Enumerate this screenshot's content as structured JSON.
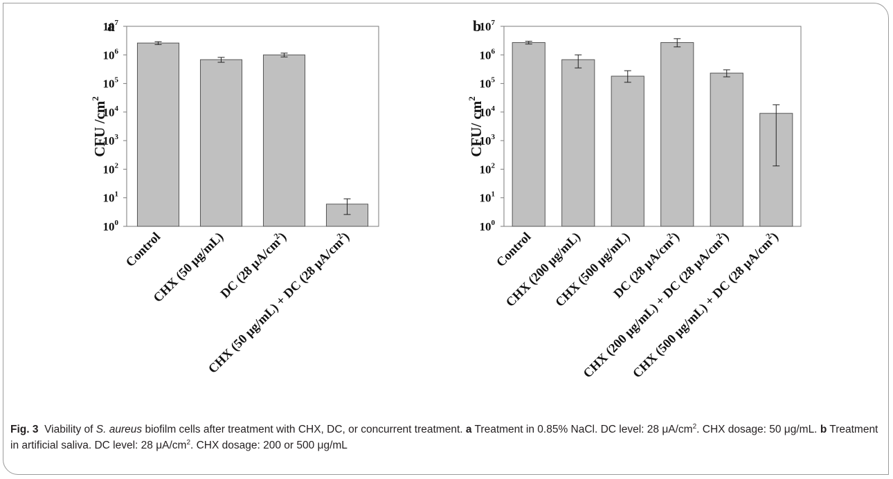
{
  "chart_data": [
    {
      "panel_label": "a",
      "type": "bar",
      "ylabel": "CFU /cm",
      "ylabel_sup": "2",
      "yscale": "log",
      "ylim": [
        1,
        10000000
      ],
      "yticks": [
        {
          "base": "10",
          "exp": "0"
        },
        {
          "base": "10",
          "exp": "1"
        },
        {
          "base": "10",
          "exp": "2"
        },
        {
          "base": "10",
          "exp": "3"
        },
        {
          "base": "10",
          "exp": "4"
        },
        {
          "base": "10",
          "exp": "5"
        },
        {
          "base": "10",
          "exp": "6"
        },
        {
          "base": "10",
          "exp": "7"
        }
      ],
      "categories": [
        {
          "text": "Control",
          "sup": "",
          "tail": ""
        },
        {
          "text": "CHX (50 μg/mL)",
          "sup": "",
          "tail": ""
        },
        {
          "text": "DC (28 μA/cm",
          "sup": "2",
          "tail": ")"
        },
        {
          "text": "CHX (50 μg/mL) + DC (28 μA/cm",
          "sup": "2",
          "tail": ")"
        }
      ],
      "values": [
        2600000,
        680000,
        1000000,
        6
      ],
      "err_low": [
        2300000,
        550000,
        850000,
        2.6
      ],
      "err_high": [
        2900000,
        820000,
        1150000,
        9.2
      ],
      "bar_color": "#c0c0c0"
    },
    {
      "panel_label": "b",
      "type": "bar",
      "ylabel": "CFU/ cm",
      "ylabel_sup": "2",
      "yscale": "log",
      "ylim": [
        1,
        10000000
      ],
      "yticks": [
        {
          "base": "10",
          "exp": "0"
        },
        {
          "base": "10",
          "exp": "1"
        },
        {
          "base": "10",
          "exp": "2"
        },
        {
          "base": "10",
          "exp": "3"
        },
        {
          "base": "10",
          "exp": "4"
        },
        {
          "base": "10",
          "exp": "5"
        },
        {
          "base": "10",
          "exp": "6"
        },
        {
          "base": "10",
          "exp": "7"
        }
      ],
      "categories": [
        {
          "text": "Control",
          "sup": "",
          "tail": ""
        },
        {
          "text": "CHX (200 μg/mL)",
          "sup": "",
          "tail": ""
        },
        {
          "text": "CHX (500 μg/mL)",
          "sup": "",
          "tail": ""
        },
        {
          "text": "DC (28 μA/cm",
          "sup": "2",
          "tail": ")"
        },
        {
          "text": "CHX (200 μg/mL) + DC (28 μA/cm",
          "sup": "2",
          "tail": ")"
        },
        {
          "text": "CHX (500 μg/mL) + DC (28 μA/cm",
          "sup": "2",
          "tail": ")"
        }
      ],
      "values": [
        2700000,
        680000,
        180000,
        2700000,
        230000,
        9000
      ],
      "err_low": [
        2400000,
        350000,
        110000,
        1900000,
        170000,
        130
      ],
      "err_high": [
        3000000,
        1000000,
        280000,
        3700000,
        300000,
        18000
      ],
      "bar_color": "#c0c0c0"
    }
  ],
  "caption": {
    "fig_label": "Fig. 3",
    "p1": "Viability of ",
    "species": "S. aureus",
    "p2": " biofilm cells after treatment with CHX, DC, or concurrent treatment. ",
    "a_label": "a",
    "a_text": " Treatment in 0.85% NaCl. DC level: 28 μA/cm",
    "sup1": "2",
    "a_text2": ". CHX dosage: 50 μg/mL. ",
    "b_label": "b",
    "b_text": " Treatment in artificial saliva. DC level: 28 μA/cm",
    "sup2": "2",
    "b_text2": ". CHX dosage: 200 or 500 μg/mL"
  }
}
